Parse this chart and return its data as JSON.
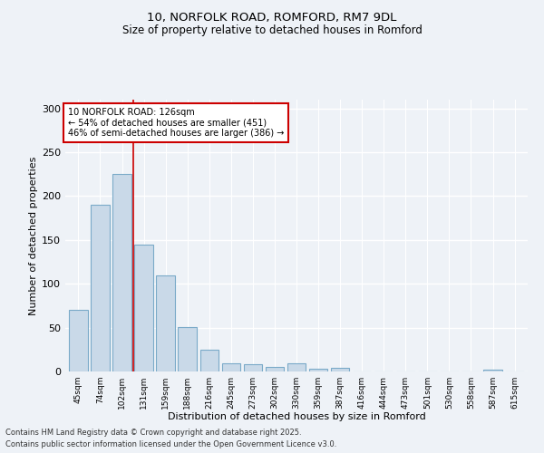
{
  "title1": "10, NORFOLK ROAD, ROMFORD, RM7 9DL",
  "title2": "Size of property relative to detached houses in Romford",
  "xlabel": "Distribution of detached houses by size in Romford",
  "ylabel": "Number of detached properties",
  "categories": [
    "45sqm",
    "74sqm",
    "102sqm",
    "131sqm",
    "159sqm",
    "188sqm",
    "216sqm",
    "245sqm",
    "273sqm",
    "302sqm",
    "330sqm",
    "359sqm",
    "387sqm",
    "416sqm",
    "444sqm",
    "473sqm",
    "501sqm",
    "530sqm",
    "558sqm",
    "587sqm",
    "615sqm"
  ],
  "values": [
    70,
    190,
    225,
    145,
    110,
    51,
    25,
    9,
    8,
    5,
    9,
    3,
    4,
    0,
    0,
    0,
    0,
    0,
    0,
    2,
    0
  ],
  "bar_color": "#c9d9e8",
  "bar_edge_color": "#7aaac8",
  "vline_x": 2.5,
  "vline_color": "#cc0000",
  "annotation_text": "10 NORFOLK ROAD: 126sqm\n← 54% of detached houses are smaller (451)\n46% of semi-detached houses are larger (386) →",
  "annotation_box_color": "#ffffff",
  "annotation_box_edge": "#cc0000",
  "ylim": [
    0,
    310
  ],
  "yticks": [
    0,
    50,
    100,
    150,
    200,
    250,
    300
  ],
  "footer1": "Contains HM Land Registry data © Crown copyright and database right 2025.",
  "footer2": "Contains public sector information licensed under the Open Government Licence v3.0.",
  "bg_color": "#eef2f7"
}
